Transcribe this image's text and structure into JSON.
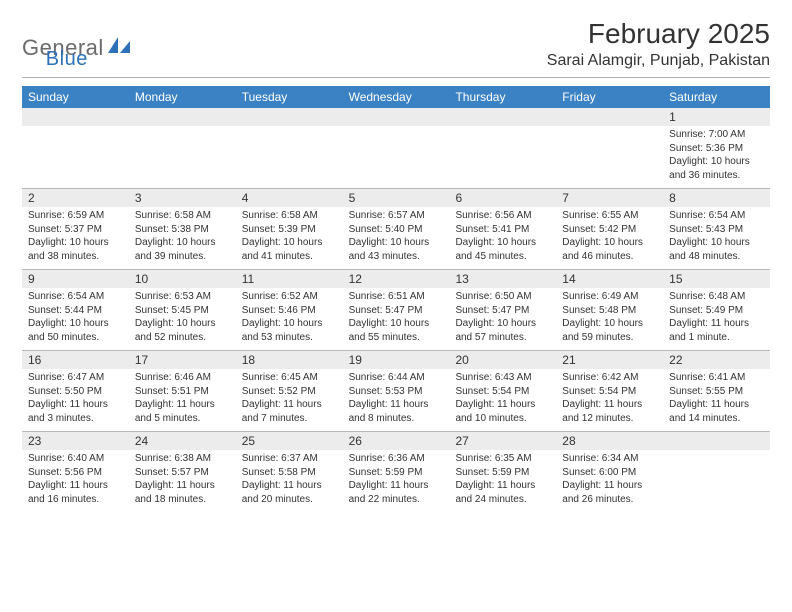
{
  "brand": {
    "name_part1": "General",
    "name_part2": "Blue",
    "logo_fill": "#2d72b8"
  },
  "header": {
    "month_title": "February 2025",
    "location": "Sarai Alamgir, Punjab, Pakistan"
  },
  "colors": {
    "header_bar_bg": "#3b82c4",
    "header_bar_text": "#ffffff",
    "date_row_bg": "#ececec",
    "divider": "#b0b0b0",
    "text": "#333333"
  },
  "day_names": [
    "Sunday",
    "Monday",
    "Tuesday",
    "Wednesday",
    "Thursday",
    "Friday",
    "Saturday"
  ],
  "weeks": [
    [
      {
        "date": "",
        "sunrise": "",
        "sunset": "",
        "daylight": ""
      },
      {
        "date": "",
        "sunrise": "",
        "sunset": "",
        "daylight": ""
      },
      {
        "date": "",
        "sunrise": "",
        "sunset": "",
        "daylight": ""
      },
      {
        "date": "",
        "sunrise": "",
        "sunset": "",
        "daylight": ""
      },
      {
        "date": "",
        "sunrise": "",
        "sunset": "",
        "daylight": ""
      },
      {
        "date": "",
        "sunrise": "",
        "sunset": "",
        "daylight": ""
      },
      {
        "date": "1",
        "sunrise": "Sunrise: 7:00 AM",
        "sunset": "Sunset: 5:36 PM",
        "daylight": "Daylight: 10 hours and 36 minutes."
      }
    ],
    [
      {
        "date": "2",
        "sunrise": "Sunrise: 6:59 AM",
        "sunset": "Sunset: 5:37 PM",
        "daylight": "Daylight: 10 hours and 38 minutes."
      },
      {
        "date": "3",
        "sunrise": "Sunrise: 6:58 AM",
        "sunset": "Sunset: 5:38 PM",
        "daylight": "Daylight: 10 hours and 39 minutes."
      },
      {
        "date": "4",
        "sunrise": "Sunrise: 6:58 AM",
        "sunset": "Sunset: 5:39 PM",
        "daylight": "Daylight: 10 hours and 41 minutes."
      },
      {
        "date": "5",
        "sunrise": "Sunrise: 6:57 AM",
        "sunset": "Sunset: 5:40 PM",
        "daylight": "Daylight: 10 hours and 43 minutes."
      },
      {
        "date": "6",
        "sunrise": "Sunrise: 6:56 AM",
        "sunset": "Sunset: 5:41 PM",
        "daylight": "Daylight: 10 hours and 45 minutes."
      },
      {
        "date": "7",
        "sunrise": "Sunrise: 6:55 AM",
        "sunset": "Sunset: 5:42 PM",
        "daylight": "Daylight: 10 hours and 46 minutes."
      },
      {
        "date": "8",
        "sunrise": "Sunrise: 6:54 AM",
        "sunset": "Sunset: 5:43 PM",
        "daylight": "Daylight: 10 hours and 48 minutes."
      }
    ],
    [
      {
        "date": "9",
        "sunrise": "Sunrise: 6:54 AM",
        "sunset": "Sunset: 5:44 PM",
        "daylight": "Daylight: 10 hours and 50 minutes."
      },
      {
        "date": "10",
        "sunrise": "Sunrise: 6:53 AM",
        "sunset": "Sunset: 5:45 PM",
        "daylight": "Daylight: 10 hours and 52 minutes."
      },
      {
        "date": "11",
        "sunrise": "Sunrise: 6:52 AM",
        "sunset": "Sunset: 5:46 PM",
        "daylight": "Daylight: 10 hours and 53 minutes."
      },
      {
        "date": "12",
        "sunrise": "Sunrise: 6:51 AM",
        "sunset": "Sunset: 5:47 PM",
        "daylight": "Daylight: 10 hours and 55 minutes."
      },
      {
        "date": "13",
        "sunrise": "Sunrise: 6:50 AM",
        "sunset": "Sunset: 5:47 PM",
        "daylight": "Daylight: 10 hours and 57 minutes."
      },
      {
        "date": "14",
        "sunrise": "Sunrise: 6:49 AM",
        "sunset": "Sunset: 5:48 PM",
        "daylight": "Daylight: 10 hours and 59 minutes."
      },
      {
        "date": "15",
        "sunrise": "Sunrise: 6:48 AM",
        "sunset": "Sunset: 5:49 PM",
        "daylight": "Daylight: 11 hours and 1 minute."
      }
    ],
    [
      {
        "date": "16",
        "sunrise": "Sunrise: 6:47 AM",
        "sunset": "Sunset: 5:50 PM",
        "daylight": "Daylight: 11 hours and 3 minutes."
      },
      {
        "date": "17",
        "sunrise": "Sunrise: 6:46 AM",
        "sunset": "Sunset: 5:51 PM",
        "daylight": "Daylight: 11 hours and 5 minutes."
      },
      {
        "date": "18",
        "sunrise": "Sunrise: 6:45 AM",
        "sunset": "Sunset: 5:52 PM",
        "daylight": "Daylight: 11 hours and 7 minutes."
      },
      {
        "date": "19",
        "sunrise": "Sunrise: 6:44 AM",
        "sunset": "Sunset: 5:53 PM",
        "daylight": "Daylight: 11 hours and 8 minutes."
      },
      {
        "date": "20",
        "sunrise": "Sunrise: 6:43 AM",
        "sunset": "Sunset: 5:54 PM",
        "daylight": "Daylight: 11 hours and 10 minutes."
      },
      {
        "date": "21",
        "sunrise": "Sunrise: 6:42 AM",
        "sunset": "Sunset: 5:54 PM",
        "daylight": "Daylight: 11 hours and 12 minutes."
      },
      {
        "date": "22",
        "sunrise": "Sunrise: 6:41 AM",
        "sunset": "Sunset: 5:55 PM",
        "daylight": "Daylight: 11 hours and 14 minutes."
      }
    ],
    [
      {
        "date": "23",
        "sunrise": "Sunrise: 6:40 AM",
        "sunset": "Sunset: 5:56 PM",
        "daylight": "Daylight: 11 hours and 16 minutes."
      },
      {
        "date": "24",
        "sunrise": "Sunrise: 6:38 AM",
        "sunset": "Sunset: 5:57 PM",
        "daylight": "Daylight: 11 hours and 18 minutes."
      },
      {
        "date": "25",
        "sunrise": "Sunrise: 6:37 AM",
        "sunset": "Sunset: 5:58 PM",
        "daylight": "Daylight: 11 hours and 20 minutes."
      },
      {
        "date": "26",
        "sunrise": "Sunrise: 6:36 AM",
        "sunset": "Sunset: 5:59 PM",
        "daylight": "Daylight: 11 hours and 22 minutes."
      },
      {
        "date": "27",
        "sunrise": "Sunrise: 6:35 AM",
        "sunset": "Sunset: 5:59 PM",
        "daylight": "Daylight: 11 hours and 24 minutes."
      },
      {
        "date": "28",
        "sunrise": "Sunrise: 6:34 AM",
        "sunset": "Sunset: 6:00 PM",
        "daylight": "Daylight: 11 hours and 26 minutes."
      },
      {
        "date": "",
        "sunrise": "",
        "sunset": "",
        "daylight": ""
      }
    ]
  ]
}
